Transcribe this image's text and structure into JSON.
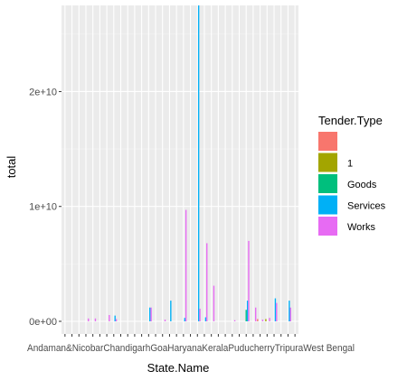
{
  "chart_data": {
    "type": "bar",
    "title": "",
    "xlabel": "State.Name",
    "ylabel": "total",
    "ylim": [
      -1100000000.0,
      27500000000.0
    ],
    "y_ticks": [
      {
        "value": 0,
        "label": "0e+00"
      },
      {
        "value": 10000000000.0,
        "label": "1e+10"
      },
      {
        "value": 20000000000.0,
        "label": "2e+10"
      }
    ],
    "x_tick_text_visible": "Andaman&NicobarChandigarhGoaHaryanaKeralaPuducherryTripuraWest Bengal",
    "category_count": 34,
    "grid": true,
    "legend": {
      "title": "Tender.Type",
      "position": "right",
      "items": [
        {
          "label": "",
          "color": "#F8766D"
        },
        {
          "label": "1",
          "color": "#A3A500"
        },
        {
          "label": "Goods",
          "color": "#00BF7D"
        },
        {
          "label": "Services",
          "color": "#00B0F6"
        },
        {
          "label": "Works",
          "color": "#E76BF3"
        }
      ]
    },
    "series": [
      {
        "name": "",
        "values": [
          0,
          0,
          0,
          0,
          0,
          0,
          0,
          0,
          0,
          0,
          0,
          0,
          0,
          0,
          0,
          0,
          0,
          0,
          0,
          0,
          0,
          0,
          0,
          0,
          0,
          0,
          0,
          0,
          0,
          0,
          0,
          0,
          0,
          0
        ]
      },
      {
        "name": "1",
        "values": [
          0,
          0,
          0,
          0,
          0,
          0,
          0,
          0,
          0,
          0,
          0,
          0,
          0,
          0,
          0,
          0,
          0,
          0,
          0,
          0,
          0,
          0,
          0,
          0,
          0,
          0,
          0,
          0,
          0,
          0,
          0,
          0,
          0,
          0
        ]
      },
      {
        "name": "Goods",
        "values": [
          0,
          0,
          0,
          0,
          0,
          0,
          0,
          0,
          0,
          0,
          0,
          0,
          0,
          0,
          0,
          0,
          0,
          0,
          0,
          0,
          0,
          0,
          0,
          0,
          0,
          0,
          0,
          0,
          0,
          0,
          0,
          0,
          0,
          0
        ]
      },
      {
        "name": "Services",
        "values": [
          0,
          0,
          0,
          0,
          0,
          0,
          0,
          0,
          0,
          0,
          0,
          0,
          0,
          0,
          0,
          0,
          0,
          0,
          0,
          0,
          0,
          0,
          0,
          0,
          0,
          0,
          0,
          0,
          0,
          0,
          0,
          0,
          0,
          0
        ]
      },
      {
        "name": "Works",
        "values": [
          0,
          0,
          0,
          0,
          0,
          0,
          0,
          0,
          0,
          0,
          0,
          0,
          0,
          0,
          0,
          0,
          0,
          0,
          0,
          0,
          0,
          0,
          0,
          0,
          0,
          0,
          0,
          0,
          0,
          0,
          0,
          0,
          0,
          0
        ]
      }
    ],
    "bars": [
      {
        "cat": 3,
        "series": 4,
        "value": 250000000.0
      },
      {
        "cat": 4,
        "series": 4,
        "value": 250000000.0
      },
      {
        "cat": 6,
        "series": 4,
        "value": 550000000.0
      },
      {
        "cat": 7,
        "series": 3,
        "value": 500000000.0
      },
      {
        "cat": 7,
        "series": 4,
        "value": 200000000.0
      },
      {
        "cat": 12,
        "series": 3,
        "value": 1200000000.0
      },
      {
        "cat": 12,
        "series": 4,
        "value": 1200000000.0
      },
      {
        "cat": 14,
        "series": 4,
        "value": 150000000.0
      },
      {
        "cat": 15,
        "series": 3,
        "value": 1800000000.0
      },
      {
        "cat": 17,
        "series": 3,
        "value": 300000000.0
      },
      {
        "cat": 17,
        "series": 4,
        "value": 9700000000.0
      },
      {
        "cat": 19,
        "series": 3,
        "value": 27500000000.0
      },
      {
        "cat": 19,
        "series": 4,
        "value": 1100000000.0
      },
      {
        "cat": 20,
        "series": 3,
        "value": 350000000.0
      },
      {
        "cat": 20,
        "series": 4,
        "value": 6800000000.0
      },
      {
        "cat": 21,
        "series": 4,
        "value": 3100000000.0
      },
      {
        "cat": 24,
        "series": 4,
        "value": 100000000.0
      },
      {
        "cat": 26,
        "series": 2,
        "value": 1000000000.0
      },
      {
        "cat": 26,
        "series": 3,
        "value": 1800000000.0
      },
      {
        "cat": 26,
        "series": 4,
        "value": 7000000000.0
      },
      {
        "cat": 27,
        "series": 4,
        "value": 1200000000.0
      },
      {
        "cat": 28,
        "series": 0,
        "value": 200000000.0
      },
      {
        "cat": 28,
        "series": 4,
        "value": 150000000.0
      },
      {
        "cat": 29,
        "series": 1,
        "value": 200000000.0
      },
      {
        "cat": 29,
        "series": 4,
        "value": 300000000.0
      },
      {
        "cat": 30,
        "series": 3,
        "value": 2000000000.0
      },
      {
        "cat": 30,
        "series": 4,
        "value": 1600000000.0
      },
      {
        "cat": 32,
        "series": 3,
        "value": 1800000000.0
      },
      {
        "cat": 32,
        "series": 4,
        "value": 1200000000.0
      }
    ]
  }
}
